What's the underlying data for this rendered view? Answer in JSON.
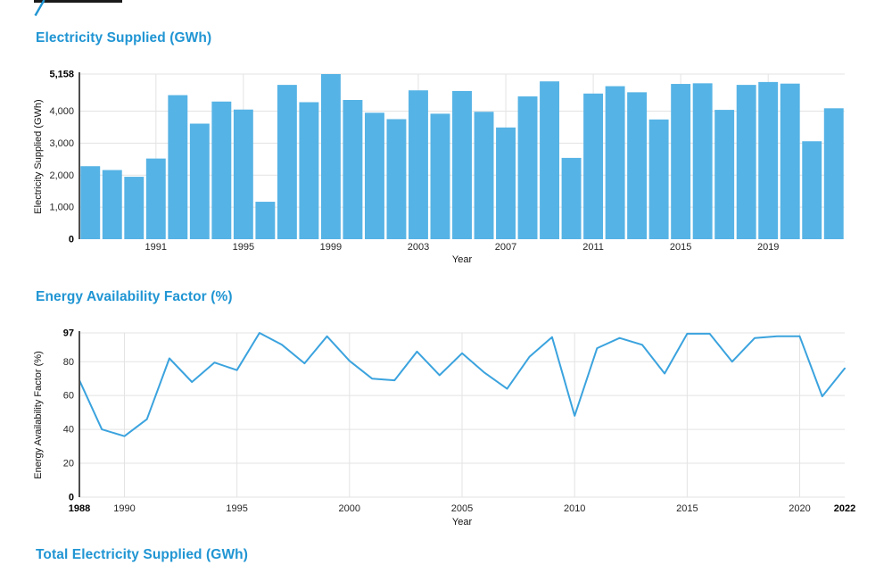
{
  "style": {
    "accent_color": "#2095d3",
    "bar_color": "#56b3e5",
    "line_color": "#3ba3de",
    "grid_color": "#e3e3e3",
    "axis_color": "#4d4d4d"
  },
  "header": {
    "slash_glyph": "/"
  },
  "next_section": {
    "title": "Total Electricity Supplied (GWh)"
  },
  "chart_data": [
    {
      "type": "bar",
      "title": "Electricity Supplied (GWh)",
      "xlabel": "Year",
      "ylabel": "Electricity Supplied (GWh)",
      "color": "#56b3e5",
      "grid": true,
      "legend": "none",
      "ylim": [
        0,
        5158
      ],
      "x": [
        1988,
        1989,
        1990,
        1991,
        1992,
        1993,
        1994,
        1995,
        1996,
        1997,
        1998,
        1999,
        2000,
        2001,
        2002,
        2003,
        2004,
        2005,
        2006,
        2007,
        2008,
        2009,
        2010,
        2011,
        2012,
        2013,
        2014,
        2015,
        2016,
        2017,
        2018,
        2019,
        2020,
        2021,
        2022
      ],
      "values": [
        2280,
        2160,
        1950,
        2520,
        4500,
        3610,
        4300,
        4050,
        1170,
        4820,
        4280,
        5158,
        4350,
        3950,
        3750,
        4650,
        3920,
        4630,
        3980,
        3490,
        4460,
        4930,
        2540,
        4550,
        4780,
        4590,
        3740,
        4850,
        4870,
        4040,
        4820,
        4910,
        4860,
        3060,
        4090
      ],
      "yticks": [
        {
          "v": 0,
          "label": "0",
          "bold": true
        },
        {
          "v": 1000,
          "label": "1,000"
        },
        {
          "v": 2000,
          "label": "2,000"
        },
        {
          "v": 3000,
          "label": "3,000"
        },
        {
          "v": 4000,
          "label": "4,000"
        },
        {
          "v": 5158,
          "label": "5,158",
          "bold": true
        }
      ],
      "xticks": [
        {
          "v": 1991,
          "label": "1991"
        },
        {
          "v": 1995,
          "label": "1995"
        },
        {
          "v": 1999,
          "label": "1999"
        },
        {
          "v": 2003,
          "label": "2003"
        },
        {
          "v": 2007,
          "label": "2007"
        },
        {
          "v": 2011,
          "label": "2011"
        },
        {
          "v": 2015,
          "label": "2015"
        },
        {
          "v": 2019,
          "label": "2019"
        }
      ]
    },
    {
      "type": "line",
      "title": "Energy Availability Factor (%)",
      "xlabel": "Year",
      "ylabel": "Energy Availability Factor (%)",
      "color": "#3ba3de",
      "grid": true,
      "legend": "none",
      "ylim": [
        0,
        97
      ],
      "x": [
        1988,
        1989,
        1990,
        1991,
        1992,
        1993,
        1994,
        1995,
        1996,
        1997,
        1998,
        1999,
        2000,
        2001,
        2002,
        2003,
        2004,
        2005,
        2006,
        2007,
        2008,
        2009,
        2010,
        2011,
        2012,
        2013,
        2014,
        2015,
        2016,
        2017,
        2018,
        2019,
        2020,
        2021,
        2022
      ],
      "values": [
        69,
        40,
        36,
        46,
        82,
        68,
        79.5,
        75,
        97,
        90,
        79,
        95,
        80.5,
        70,
        69,
        86,
        72,
        85,
        73.5,
        64,
        83,
        94.5,
        48,
        88,
        94,
        90,
        73,
        96.5,
        96.5,
        80,
        94,
        95,
        95,
        59.5,
        76
      ],
      "yticks": [
        {
          "v": 0,
          "label": "0",
          "bold": true
        },
        {
          "v": 20,
          "label": "20"
        },
        {
          "v": 40,
          "label": "40"
        },
        {
          "v": 60,
          "label": "60"
        },
        {
          "v": 80,
          "label": "80"
        },
        {
          "v": 97,
          "label": "97",
          "bold": true
        }
      ],
      "xticks": [
        {
          "v": 1988,
          "label": "1988",
          "bold": true
        },
        {
          "v": 1990,
          "label": "1990"
        },
        {
          "v": 1995,
          "label": "1995"
        },
        {
          "v": 2000,
          "label": "2000"
        },
        {
          "v": 2005,
          "label": "2005"
        },
        {
          "v": 2010,
          "label": "2010"
        },
        {
          "v": 2015,
          "label": "2015"
        },
        {
          "v": 2020,
          "label": "2020"
        },
        {
          "v": 2022,
          "label": "2022",
          "bold": true
        }
      ]
    }
  ]
}
